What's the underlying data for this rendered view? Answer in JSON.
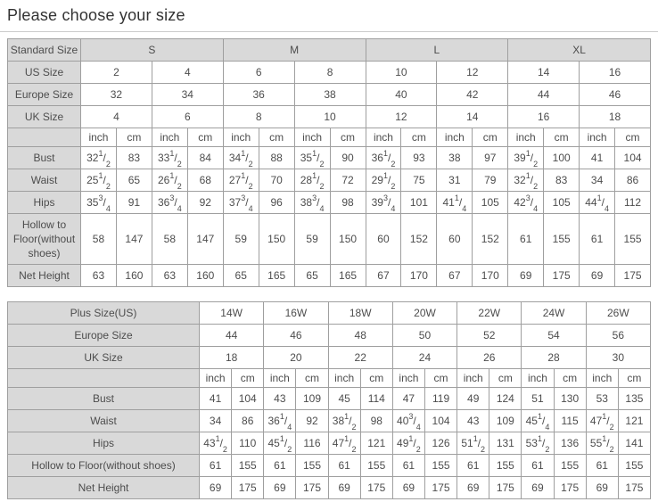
{
  "page": {
    "title": "Please choose your size"
  },
  "colors": {
    "header_bg": "#d9d9d9",
    "border": "#9f9f9f",
    "text": "#4d4d4d",
    "title_text": "#333333",
    "divider": "#cccccc"
  },
  "standard_table": {
    "corner_label": "Standard Size",
    "size_groups": [
      "S",
      "M",
      "L",
      "XL"
    ],
    "size_rows": [
      {
        "label": "US Size",
        "values": [
          "2",
          "4",
          "6",
          "8",
          "10",
          "12",
          "14",
          "16"
        ]
      },
      {
        "label": "Europe Size",
        "values": [
          "32",
          "34",
          "36",
          "38",
          "40",
          "42",
          "44",
          "46"
        ]
      },
      {
        "label": "UK Size",
        "values": [
          "4",
          "6",
          "8",
          "10",
          "12",
          "14",
          "16",
          "18"
        ]
      }
    ],
    "units": [
      "inch",
      "cm"
    ],
    "measure_rows": [
      {
        "label": "Bust",
        "values": [
          "32 1/2",
          "83",
          "33 1/2",
          "84",
          "34 1/2",
          "88",
          "35 1/2",
          "90",
          "36 1/2",
          "93",
          "38",
          "97",
          "39 1/2",
          "100",
          "41",
          "104"
        ]
      },
      {
        "label": "Waist",
        "values": [
          "25 1/2",
          "65",
          "26 1/2",
          "68",
          "27 1/2",
          "70",
          "28 1/2",
          "72",
          "29 1/2",
          "75",
          "31",
          "79",
          "32 1/2",
          "83",
          "34",
          "86"
        ]
      },
      {
        "label": "Hips",
        "values": [
          "35 3/4",
          "91",
          "36 3/4",
          "92",
          "37 3/4",
          "96",
          "38 3/4",
          "98",
          "39 3/4",
          "101",
          "41 1/4",
          "105",
          "42 3/4",
          "105",
          "44 1/4",
          "112"
        ]
      },
      {
        "label": "Hollow to Floor(without shoes)",
        "values": [
          "58",
          "147",
          "58",
          "147",
          "59",
          "150",
          "59",
          "150",
          "60",
          "152",
          "60",
          "152",
          "61",
          "155",
          "61",
          "155"
        ]
      },
      {
        "label": "Net Height",
        "values": [
          "63",
          "160",
          "63",
          "160",
          "65",
          "165",
          "65",
          "165",
          "67",
          "170",
          "67",
          "170",
          "69",
          "175",
          "69",
          "175"
        ]
      }
    ]
  },
  "plus_table": {
    "size_rows": [
      {
        "label": "Plus Size(US)",
        "values": [
          "14W",
          "16W",
          "18W",
          "20W",
          "22W",
          "24W",
          "26W"
        ]
      },
      {
        "label": "Europe Size",
        "values": [
          "44",
          "46",
          "48",
          "50",
          "52",
          "54",
          "56"
        ]
      },
      {
        "label": "UK Size",
        "values": [
          "18",
          "20",
          "22",
          "24",
          "26",
          "28",
          "30"
        ]
      }
    ],
    "units": [
      "inch",
      "cm"
    ],
    "measure_rows": [
      {
        "label": "Bust",
        "values": [
          "41",
          "104",
          "43",
          "109",
          "45",
          "114",
          "47",
          "119",
          "49",
          "124",
          "51",
          "130",
          "53",
          "135"
        ]
      },
      {
        "label": "Waist",
        "values": [
          "34",
          "86",
          "36 1/4",
          "92",
          "38 1/2",
          "98",
          "40 3/4",
          "104",
          "43",
          "109",
          "45 1/4",
          "115",
          "47 1/2",
          "121"
        ]
      },
      {
        "label": "Hips",
        "values": [
          "43 1/2",
          "110",
          "45 1/2",
          "116",
          "47 1/2",
          "121",
          "49 1/2",
          "126",
          "51 1/2",
          "131",
          "53 1/2",
          "136",
          "55 1/2",
          "141"
        ]
      },
      {
        "label": "Hollow to Floor(without shoes)",
        "values": [
          "61",
          "155",
          "61",
          "155",
          "61",
          "155",
          "61",
          "155",
          "61",
          "155",
          "61",
          "155",
          "61",
          "155"
        ]
      },
      {
        "label": "Net Height",
        "values": [
          "69",
          "175",
          "69",
          "175",
          "69",
          "175",
          "69",
          "175",
          "69",
          "175",
          "69",
          "175",
          "69",
          "175"
        ]
      }
    ]
  }
}
